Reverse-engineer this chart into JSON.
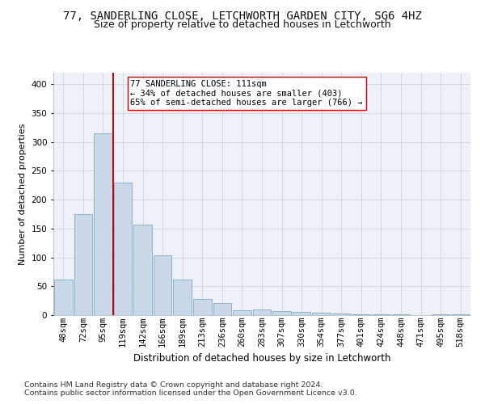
{
  "title": "77, SANDERLING CLOSE, LETCHWORTH GARDEN CITY, SG6 4HZ",
  "subtitle": "Size of property relative to detached houses in Letchworth",
  "xlabel": "Distribution of detached houses by size in Letchworth",
  "ylabel": "Number of detached properties",
  "categories": [
    "48sqm",
    "72sqm",
    "95sqm",
    "119sqm",
    "142sqm",
    "166sqm",
    "189sqm",
    "213sqm",
    "236sqm",
    "260sqm",
    "283sqm",
    "307sqm",
    "330sqm",
    "354sqm",
    "377sqm",
    "401sqm",
    "424sqm",
    "448sqm",
    "471sqm",
    "495sqm",
    "518sqm"
  ],
  "values": [
    62,
    175,
    315,
    230,
    157,
    103,
    61,
    28,
    21,
    9,
    10,
    7,
    5,
    4,
    3,
    2,
    1,
    1,
    0,
    1,
    1
  ],
  "bar_color": "#c9d9e8",
  "bar_edge_color": "#7aaac8",
  "grid_color": "#d0d8e8",
  "vline_bar_index": 2,
  "vline_color": "#cc0000",
  "annotation_text": "77 SANDERLING CLOSE: 111sqm\n← 34% of detached houses are smaller (403)\n65% of semi-detached houses are larger (766) →",
  "annotation_box_color": "#ffffff",
  "annotation_box_edge": "#cc0000",
  "footnote1": "Contains HM Land Registry data © Crown copyright and database right 2024.",
  "footnote2": "Contains public sector information licensed under the Open Government Licence v3.0.",
  "ylim": [
    0,
    420
  ],
  "title_fontsize": 10,
  "subtitle_fontsize": 9,
  "xlabel_fontsize": 8.5,
  "ylabel_fontsize": 8,
  "tick_fontsize": 7.5,
  "annotation_fontsize": 7.5,
  "footnote_fontsize": 6.8,
  "bg_color": "#eef2f8"
}
